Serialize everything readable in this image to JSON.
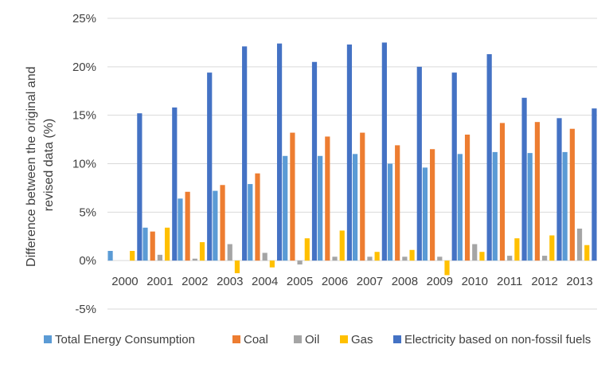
{
  "chart_data": {
    "type": "bar",
    "title": "",
    "xlabel": "",
    "ylabel": "Difference between the original and revised data (%)",
    "ylabel_lines": [
      "Difference between the original and",
      "revised data (%)"
    ],
    "ylim": [
      -5,
      25
    ],
    "yticks": [
      -5,
      0,
      5,
      10,
      15,
      20,
      25
    ],
    "ytick_labels": [
      "-5%",
      "0%",
      "5%",
      "10%",
      "15%",
      "20%",
      "25%"
    ],
    "grid": true,
    "legend_position": "bottom",
    "categories": [
      "2000",
      "2001",
      "2002",
      "2003",
      "2004",
      "2005",
      "2006",
      "2007",
      "2008",
      "2009",
      "2010",
      "2011",
      "2012",
      "2013"
    ],
    "series": [
      {
        "name": "Total Energy Consumption",
        "color": "#5b9bd5",
        "values": [
          1.0,
          3.4,
          6.4,
          7.2,
          7.9,
          10.8,
          10.8,
          11.0,
          10.0,
          9.6,
          11.0,
          11.2,
          11.1,
          11.2
        ]
      },
      {
        "name": "Coal",
        "color": "#ed7d31",
        "values": [
          0.0,
          3.0,
          7.1,
          7.8,
          9.0,
          13.2,
          12.8,
          13.2,
          11.9,
          11.5,
          13.0,
          14.2,
          14.3,
          13.6
        ]
      },
      {
        "name": "Oil",
        "color": "#a5a5a5",
        "values": [
          0.0,
          0.6,
          0.2,
          1.7,
          0.8,
          -0.4,
          0.4,
          0.4,
          0.4,
          0.4,
          1.7,
          0.5,
          0.5,
          3.3
        ]
      },
      {
        "name": "Gas",
        "color": "#ffc000",
        "values": [
          1.0,
          3.4,
          1.9,
          -1.3,
          -0.7,
          2.3,
          3.1,
          0.9,
          1.1,
          -1.5,
          0.9,
          2.3,
          2.6,
          1.6
        ]
      },
      {
        "name": "Electricity based on non-fossil fuels",
        "color": "#4472c4",
        "values": [
          15.2,
          15.8,
          19.4,
          22.1,
          22.4,
          20.5,
          22.3,
          22.5,
          20.0,
          19.4,
          21.3,
          16.8,
          14.7,
          15.7
        ]
      }
    ]
  },
  "colors": {
    "gridline": "#d9d9d9",
    "text": "#404040",
    "background": "#ffffff"
  }
}
